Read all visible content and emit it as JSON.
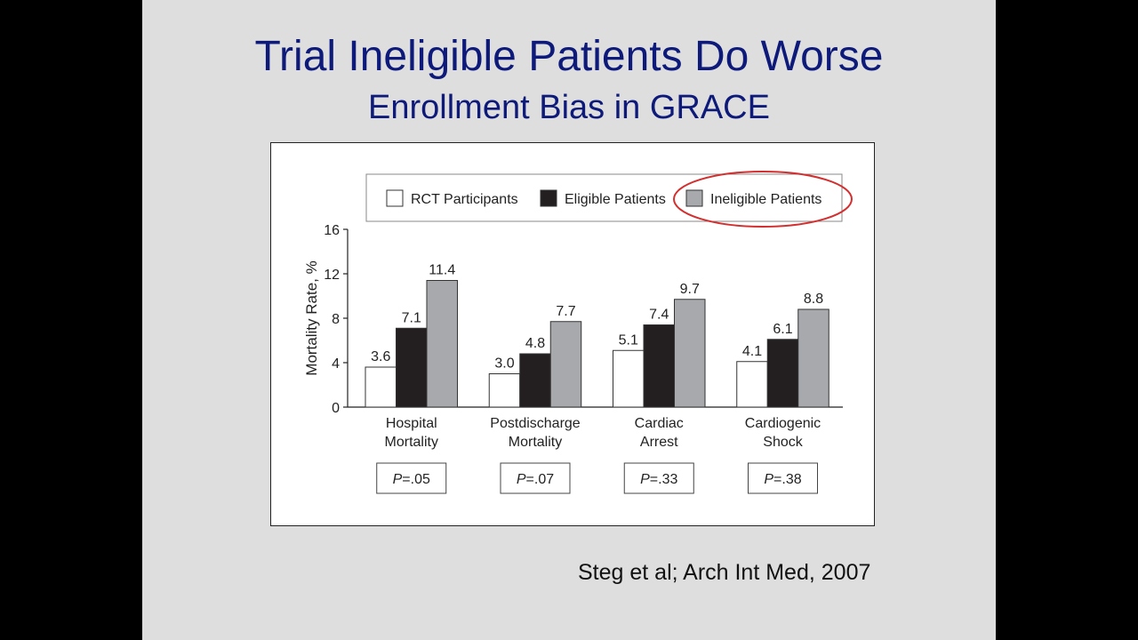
{
  "slide": {
    "title": "Trial Ineligible Patients Do Worse",
    "subtitle": "Enrollment Bias in GRACE",
    "citation": "Steg et al; Arch Int Med, 2007"
  },
  "chart_data": {
    "type": "bar",
    "categories": [
      [
        "Hospital",
        "Mortality"
      ],
      [
        "Postdischarge",
        "Mortality"
      ],
      [
        "Cardiac",
        "Arrest"
      ],
      [
        "Cardiogenic",
        "Shock"
      ]
    ],
    "series": [
      {
        "name": "RCT Participants",
        "values": [
          3.6,
          3.0,
          5.1,
          4.1
        ],
        "color": "#ffffff"
      },
      {
        "name": "Eligible Patients",
        "values": [
          7.1,
          4.8,
          7.4,
          6.1
        ],
        "color": "#231f20"
      },
      {
        "name": "Ineligible Patients",
        "values": [
          11.4,
          7.7,
          9.7,
          8.8
        ],
        "color": "#a7a9ac"
      }
    ],
    "value_labels": [
      [
        "3.6",
        "3.0",
        "5.1",
        "4.1"
      ],
      [
        "7.1",
        "4.8",
        "7.4",
        "6.1"
      ],
      [
        "11.4",
        "7.7",
        "9.7",
        "8.8"
      ]
    ],
    "p_values": [
      ".05",
      ".07",
      ".33",
      ".38"
    ],
    "p_label": "P",
    "ylabel": "Mortality Rate, %",
    "ylim": [
      0,
      16
    ],
    "yticks": [
      "0",
      "4",
      "8",
      "12",
      "16"
    ],
    "ytick_values": [
      0,
      4,
      8,
      12,
      16
    ],
    "legend_position": "top",
    "highlight": "Ineligible Patients",
    "highlight_color": "#d32f2f"
  }
}
